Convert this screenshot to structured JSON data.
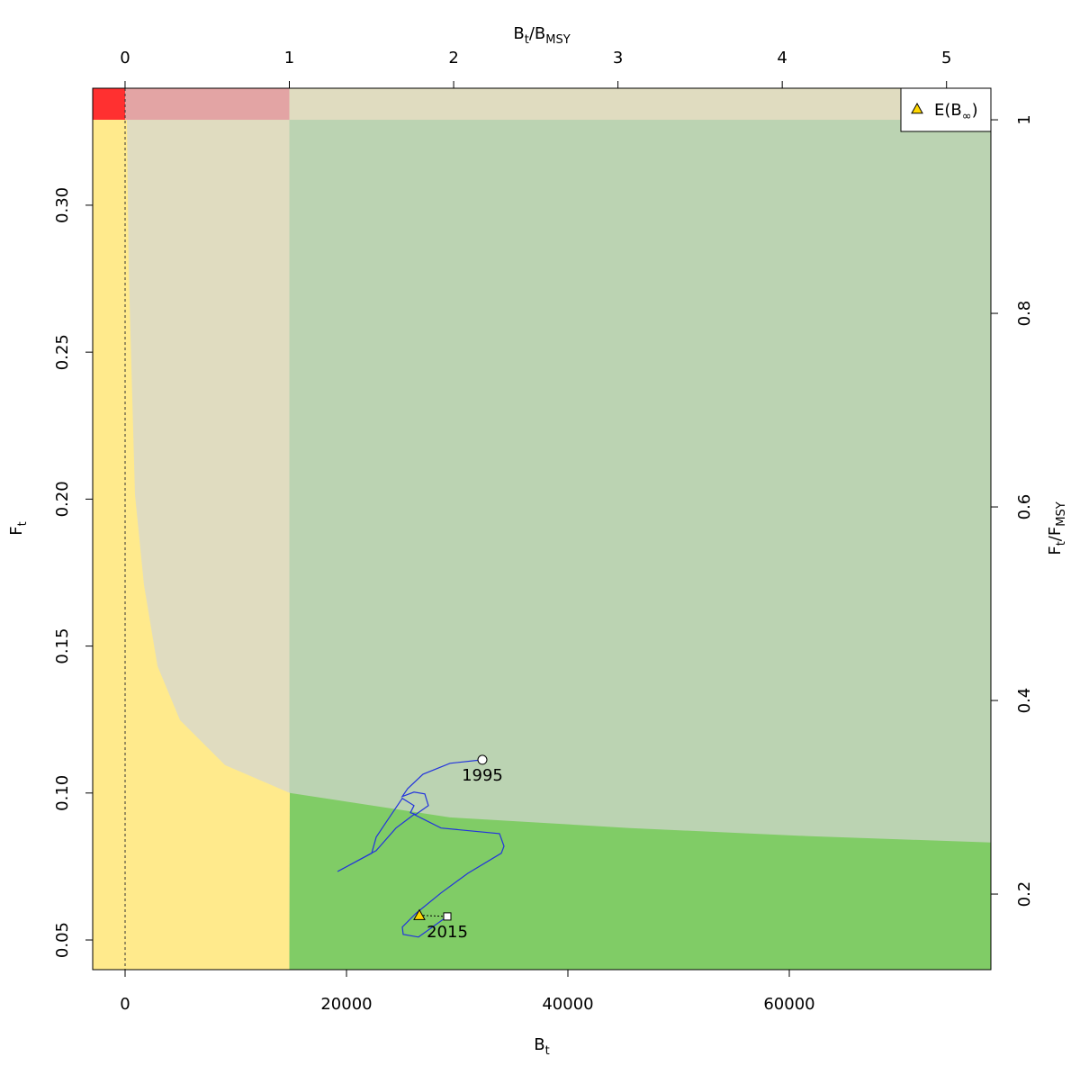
{
  "chart_data": {
    "type": "line",
    "xlabel": [
      "B",
      "t"
    ],
    "ylabel": [
      "F",
      "t"
    ],
    "x2label": [
      "B",
      "t",
      "/B",
      "MSY"
    ],
    "y2label": [
      "F",
      "t",
      "/F",
      "MSY"
    ],
    "xlim": [
      -2927,
      78211
    ],
    "xticks": [
      0,
      20000,
      40000,
      60000
    ],
    "ylim": [
      0.0399,
      0.3398
    ],
    "yticks": [
      0.05,
      {
        "value": 0.1,
        "label": "0.10"
      },
      0.15,
      {
        "value": 0.2,
        "label": "0.20"
      },
      0.25,
      {
        "value": 0.3,
        "label": "0.30"
      }
    ],
    "x2lim": [
      -0.197,
      5.27
    ],
    "x2ticks": [
      0,
      1,
      2,
      3,
      4,
      5
    ],
    "y2lim": [
      0.1219,
      1.0326
    ],
    "y2ticks": [
      0.2,
      0.4,
      0.6,
      0.8,
      1
    ],
    "zone_colors": {
      "red": "#ff3030",
      "pink": "#e3a4a4",
      "beige": "#e0dcc0",
      "yellow": "#ffea8c",
      "green": "#80cc66",
      "greygreen": "#bbd3b2"
    },
    "zone_boundary": {
      "x": [
        163,
        325,
        894,
        1707,
        2927,
        4959,
        9024,
        14878,
        29350,
        45610,
        61870,
        78211
      ],
      "y": [
        0.329,
        0.278,
        0.2014,
        0.1708,
        0.1432,
        0.1248,
        0.1095,
        0.1,
        0.0917,
        0.0881,
        0.0853,
        0.0832
      ]
    },
    "series": [
      {
        "color": "#2233dd",
        "x": [
          32276,
          29350,
          26911,
          25528,
          25040,
          26098,
          27073,
          27398,
          26260,
          25772,
          26098,
          25040,
          23659,
          22683,
          22276,
          19187,
          22683,
          24472,
          26098,
          28537,
          33821,
          34228,
          33984,
          30976,
          28537,
          26260,
          25040,
          25122,
          26504,
          29106
        ],
        "values": [
          0.1113,
          0.1101,
          0.1064,
          0.1015,
          0.0988,
          0.1003,
          0.0997,
          0.0957,
          0.0927,
          0.0933,
          0.0957,
          0.0982,
          0.0905,
          0.085,
          0.0795,
          0.0733,
          0.0804,
          0.0881,
          0.0927,
          0.0881,
          0.0862,
          0.0819,
          0.0795,
          0.0727,
          0.066,
          0.059,
          0.0544,
          0.0519,
          0.051,
          0.058
        ]
      },
      {
        "name": [
          "E(B",
          "∞",
          ")"
        ],
        "color": "#ffd700",
        "marker": "triangle",
        "x": [
          26585
        ],
        "values": [
          0.0584
        ]
      }
    ],
    "annotations": [
      "1995",
      "2015"
    ],
    "legend": "top-right"
  }
}
